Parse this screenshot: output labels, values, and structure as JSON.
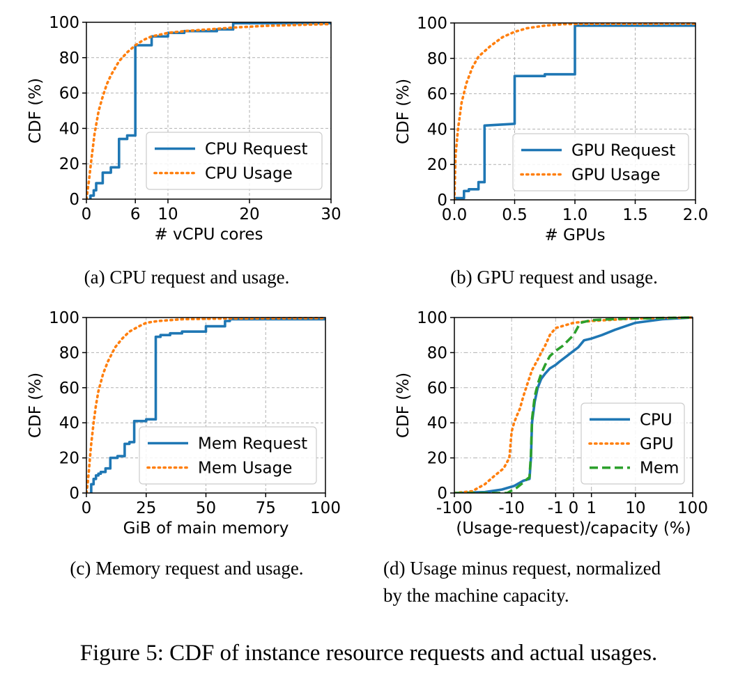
{
  "figure_caption": "Figure 5: CDF of instance resource requests and actual usages.",
  "panels": [
    {
      "id": "a",
      "caption_lines": [
        "(a) CPU request and usage."
      ]
    },
    {
      "id": "b",
      "caption_lines": [
        "(b) GPU request and usage."
      ]
    },
    {
      "id": "c",
      "caption_lines": [
        "(c) Memory request and usage."
      ]
    },
    {
      "id": "d",
      "caption_lines": [
        "(d) Usage minus request, normalized",
        "by the machine capacity."
      ]
    }
  ],
  "colors": {
    "blue": "#1f77b4",
    "orange": "#ff7f0e",
    "green": "#2ca02c",
    "grid": "#b0b0b0"
  },
  "chart_data": [
    {
      "type": "line",
      "xlabel": "# vCPU cores",
      "ylabel": "CDF (%)",
      "xlim": [
        0,
        30
      ],
      "ylim": [
        0,
        100
      ],
      "xticks": [
        0,
        6,
        10,
        20,
        30
      ],
      "yticks": [
        0,
        20,
        40,
        60,
        80,
        100
      ],
      "grid": true,
      "legend_position": "lower-right",
      "series": [
        {
          "name": "CPU Request",
          "style": "solid",
          "color": "#1f77b4",
          "x": [
            0.5,
            0.5,
            0.9,
            0.9,
            1.2,
            1.2,
            2.0,
            2.0,
            3.0,
            3.0,
            4.0,
            4.0,
            5.0,
            5.0,
            5.9,
            5.9,
            6.0,
            6.0,
            8.0,
            8.0,
            10.0,
            10.0,
            12.0,
            12.0,
            16.0,
            16.0,
            18.0,
            18.0,
            30
          ],
          "y": [
            0,
            2,
            2,
            5,
            5,
            9,
            9,
            15,
            15,
            18,
            18,
            34,
            34,
            36,
            36,
            36,
            36,
            87,
            87,
            92,
            92,
            94,
            94,
            95,
            95,
            96,
            96,
            99.5,
            99.5
          ]
        },
        {
          "name": "CPU Usage",
          "style": "dotted",
          "color": "#ff7f0e",
          "x": [
            0,
            0.3,
            0.6,
            1.0,
            1.5,
            2.0,
            2.5,
            3.0,
            4.0,
            5.0,
            6.0,
            7.0,
            8.0,
            10.0,
            12.0,
            15.0,
            18.0,
            22.0,
            30
          ],
          "y": [
            0,
            10,
            22,
            37,
            50,
            58,
            65,
            70,
            78,
            83,
            87,
            90,
            92,
            94,
            95,
            96,
            97,
            98,
            99
          ]
        }
      ]
    },
    {
      "type": "line",
      "xlabel": "# GPUs",
      "ylabel": "CDF (%)",
      "xlim": [
        0,
        2.0
      ],
      "ylim": [
        0,
        100
      ],
      "xticks": [
        0.0,
        0.5,
        1.0,
        1.5,
        2.0
      ],
      "xtick_labels": [
        "0.0",
        "0.5",
        "1.0",
        "1.5",
        "2.0"
      ],
      "yticks": [
        0,
        20,
        40,
        60,
        80,
        100
      ],
      "grid": true,
      "legend_position": "lower-right",
      "series": [
        {
          "name": "GPU Request",
          "style": "solid",
          "color": "#1f77b4",
          "x": [
            0.0,
            0.0,
            0.08,
            0.08,
            0.12,
            0.12,
            0.2,
            0.2,
            0.25,
            0.25,
            0.5,
            0.5,
            0.75,
            0.75,
            1.0,
            1.0,
            2.0
          ],
          "y": [
            0,
            1,
            1,
            5,
            5,
            6,
            6,
            10,
            10,
            42,
            43,
            70,
            70,
            71,
            71,
            98.5,
            98.5
          ]
        },
        {
          "name": "GPU Usage",
          "style": "dotted",
          "color": "#ff7f0e",
          "x": [
            0.0,
            0.01,
            0.03,
            0.06,
            0.1,
            0.15,
            0.2,
            0.3,
            0.4,
            0.5,
            0.6,
            0.75,
            0.9,
            1.0,
            2.0
          ],
          "y": [
            0,
            25,
            40,
            55,
            66,
            75,
            81,
            87,
            92,
            95,
            97,
            98.5,
            99.3,
            99.5,
            99.6
          ]
        }
      ]
    },
    {
      "type": "line",
      "xlabel": "GiB of main memory",
      "ylabel": "CDF (%)",
      "xlim": [
        0,
        100
      ],
      "ylim": [
        0,
        100
      ],
      "xticks": [
        0,
        25,
        50,
        75,
        100
      ],
      "yticks": [
        0,
        20,
        40,
        60,
        80,
        100
      ],
      "grid": true,
      "legend_position": "lower-right",
      "series": [
        {
          "name": "Mem Request",
          "style": "solid",
          "color": "#1f77b4",
          "x": [
            2,
            2,
            3,
            3,
            4,
            4,
            5,
            5,
            6,
            6,
            8,
            8,
            10,
            10,
            13,
            13,
            16,
            16,
            18,
            18,
            20,
            20,
            25,
            25,
            29,
            29,
            31,
            31,
            35,
            35,
            40,
            40,
            45,
            45,
            50,
            50,
            58,
            58,
            60,
            60,
            100
          ],
          "y": [
            0,
            5,
            5,
            8,
            8,
            10,
            10,
            11,
            11,
            12,
            12,
            14,
            14,
            20,
            20,
            21,
            21,
            28,
            28,
            29,
            29,
            41,
            41,
            42,
            42,
            89,
            89,
            90,
            90,
            91,
            91,
            92,
            92,
            92,
            92,
            95,
            95,
            98,
            98,
            99,
            99
          ]
        },
        {
          "name": "Mem Usage",
          "style": "dotted",
          "color": "#ff7f0e",
          "x": [
            0,
            0.5,
            1,
            1.5,
            2,
            3,
            4,
            5,
            7,
            9,
            12,
            15,
            18,
            22,
            25,
            30,
            40,
            60,
            100
          ],
          "y": [
            0,
            5,
            12,
            20,
            28,
            40,
            50,
            58,
            68,
            75,
            83,
            88,
            92,
            95,
            97,
            98,
            99,
            99.5,
            99.7
          ]
        }
      ]
    },
    {
      "type": "line",
      "xlabel": "(Usage-request)/capacity (%)",
      "ylabel": "CDF (%)",
      "xscale": "symlog",
      "xlim": [
        -100,
        100
      ],
      "ylim": [
        0,
        100
      ],
      "xticks": [
        -100,
        -10,
        -1,
        0,
        1,
        10,
        100
      ],
      "xtick_labels": [
        "-100",
        "-10",
        "-1",
        "0",
        "1",
        "10",
        "100"
      ],
      "yticks": [
        0,
        20,
        40,
        60,
        80,
        100
      ],
      "grid": true,
      "legend_position": "lower-right",
      "series": [
        {
          "name": "CPU",
          "style": "solid",
          "color": "#1f77b4",
          "x": [
            -100,
            -30,
            -15,
            -9,
            -6,
            -4.5,
            -4.2,
            -4,
            -3.5,
            -3,
            -2.5,
            -2,
            -1.5,
            -1,
            -0.7,
            -0.3,
            0,
            0.2,
            0.5,
            1,
            2,
            4,
            10,
            30,
            100
          ],
          "y": [
            0,
            0.5,
            2,
            4,
            7,
            8,
            20,
            40,
            52,
            60,
            65,
            68,
            71,
            73,
            75,
            78,
            81,
            83,
            87,
            88,
            90,
            93,
            97,
            99,
            100
          ]
        },
        {
          "name": "GPU",
          "style": "dotted",
          "color": "#ff7f0e",
          "x": [
            -100,
            -50,
            -30,
            -20,
            -14,
            -11,
            -10,
            -9,
            -8,
            -7,
            -6,
            -5,
            -4,
            -3,
            -2.5,
            -2,
            -1.5,
            -1,
            0,
            1,
            10,
            100
          ],
          "y": [
            0,
            1,
            5,
            10,
            14,
            20,
            35,
            40,
            44,
            48,
            55,
            62,
            70,
            76,
            80,
            84,
            90,
            94,
            97,
            98,
            99.5,
            100
          ]
        },
        {
          "name": "Mem",
          "style": "dashed",
          "color": "#2ca02c",
          "x": [
            -100,
            -12,
            -8,
            -6,
            -5,
            -4.5,
            -4.2,
            -4,
            -3.5,
            -3,
            -2.5,
            -2,
            -1.5,
            -1,
            -0.5,
            0,
            0.3,
            1,
            3,
            10,
            100
          ],
          "y": [
            0,
            0,
            3,
            6,
            8,
            9,
            22,
            42,
            55,
            62,
            68,
            73,
            78,
            81,
            84,
            90,
            97,
            98.5,
            99,
            99.5,
            100
          ]
        }
      ]
    }
  ]
}
